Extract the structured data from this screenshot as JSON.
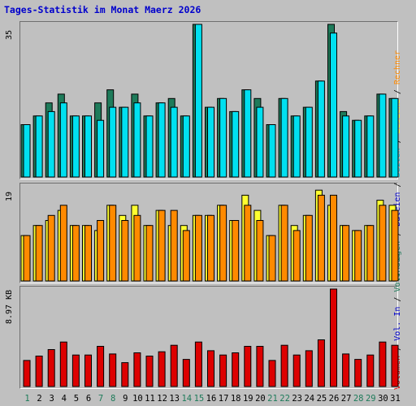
{
  "title": "Tages-Statistik im Monat Maerz 2026",
  "colors": {
    "anfragen": "#1e7b5a",
    "dateien": "#00e0f0",
    "seiten": "#00c8d8",
    "besuche": "#ffff30",
    "rechner": "#ff8a00",
    "volumen": "#dd0000",
    "blue_text": "#0000cc",
    "green_text": "#1e7b5a"
  },
  "chart_data": [
    {
      "type": "bar",
      "panel": "anfragen-dateien",
      "ylim": [
        0,
        35
      ],
      "ymax_label": "35",
      "categories": [
        "1",
        "2",
        "3",
        "4",
        "5",
        "6",
        "7",
        "8",
        "9",
        "10",
        "11",
        "12",
        "13",
        "14",
        "15",
        "16",
        "17",
        "18",
        "19",
        "20",
        "21",
        "22",
        "23",
        "24",
        "25",
        "26",
        "27",
        "28",
        "29",
        "30",
        "31"
      ],
      "series": [
        {
          "name": "Anfragen",
          "values": [
            12,
            14,
            17,
            19,
            14,
            14,
            17,
            20,
            16,
            19,
            14,
            17,
            18,
            14,
            35,
            16,
            18,
            15,
            20,
            18,
            12,
            18,
            14,
            16,
            22,
            35,
            15,
            13,
            14,
            19,
            18
          ]
        },
        {
          "name": "Dateien",
          "values": [
            12,
            14,
            15,
            17,
            14,
            14,
            13,
            16,
            16,
            17,
            14,
            17,
            16,
            14,
            35,
            16,
            18,
            15,
            20,
            16,
            12,
            18,
            14,
            16,
            22,
            33,
            14,
            13,
            14,
            19,
            18
          ]
        }
      ]
    },
    {
      "type": "bar",
      "panel": "besuche-rechner",
      "ylim": [
        0,
        19
      ],
      "ymax_label": "19",
      "categories": [
        "1",
        "2",
        "3",
        "4",
        "5",
        "6",
        "7",
        "8",
        "9",
        "10",
        "11",
        "12",
        "13",
        "14",
        "15",
        "16",
        "17",
        "18",
        "19",
        "20",
        "21",
        "22",
        "23",
        "24",
        "25",
        "26",
        "27",
        "28",
        "29",
        "30",
        "31"
      ],
      "series": [
        {
          "name": "Besuche",
          "values": [
            9,
            11,
            12,
            14,
            11,
            11,
            10,
            15,
            13,
            15,
            11,
            14,
            11,
            11,
            13,
            13,
            15,
            12,
            17,
            14,
            9,
            15,
            11,
            13,
            18,
            15,
            11,
            10,
            11,
            16,
            15
          ]
        },
        {
          "name": "Rechner",
          "values": [
            9,
            11,
            13,
            15,
            11,
            11,
            12,
            15,
            12,
            13,
            11,
            14,
            14,
            10,
            13,
            13,
            15,
            12,
            15,
            12,
            9,
            15,
            10,
            13,
            17,
            17,
            11,
            10,
            11,
            15,
            14
          ]
        }
      ]
    },
    {
      "type": "bar",
      "panel": "volumen",
      "ylim": [
        0,
        8.97
      ],
      "ymax_label": "8.97 KB",
      "categories": [
        "1",
        "2",
        "3",
        "4",
        "5",
        "6",
        "7",
        "8",
        "9",
        "10",
        "11",
        "12",
        "13",
        "14",
        "15",
        "16",
        "17",
        "18",
        "19",
        "20",
        "21",
        "22",
        "23",
        "24",
        "25",
        "26",
        "27",
        "28",
        "29",
        "30",
        "31"
      ],
      "series": [
        {
          "name": "Volumen",
          "values": [
            2.4,
            2.8,
            3.4,
            4.1,
            2.9,
            2.9,
            3.7,
            3.0,
            2.2,
            3.1,
            2.8,
            3.2,
            3.8,
            2.5,
            4.1,
            3.3,
            2.9,
            3.1,
            3.7,
            3.7,
            2.4,
            3.8,
            2.9,
            3.3,
            4.3,
            8.97,
            3.0,
            2.5,
            2.9,
            4.1,
            3.8
          ]
        }
      ]
    }
  ],
  "weekend_days": [
    "1",
    "7",
    "8",
    "14",
    "15",
    "21",
    "22",
    "28",
    "29"
  ],
  "legend": {
    "top": [
      {
        "label": "Anfragen",
        "color_key": "green_text"
      },
      {
        "label": "Dateien",
        "color_key": "blue_text"
      },
      {
        "label": "Seiten",
        "color_key": "seiten"
      },
      {
        "label": "Besuche",
        "color_key": "besuche"
      },
      {
        "label": "Rechner",
        "color_key": "rechner"
      }
    ],
    "bottom": [
      {
        "label": "Volumen",
        "color_key": "volumen"
      },
      {
        "label": "Vol. In",
        "color_key": "blue_text"
      },
      {
        "label": "Vol. Out",
        "color_key": "green_text"
      }
    ],
    "separator": " / "
  }
}
